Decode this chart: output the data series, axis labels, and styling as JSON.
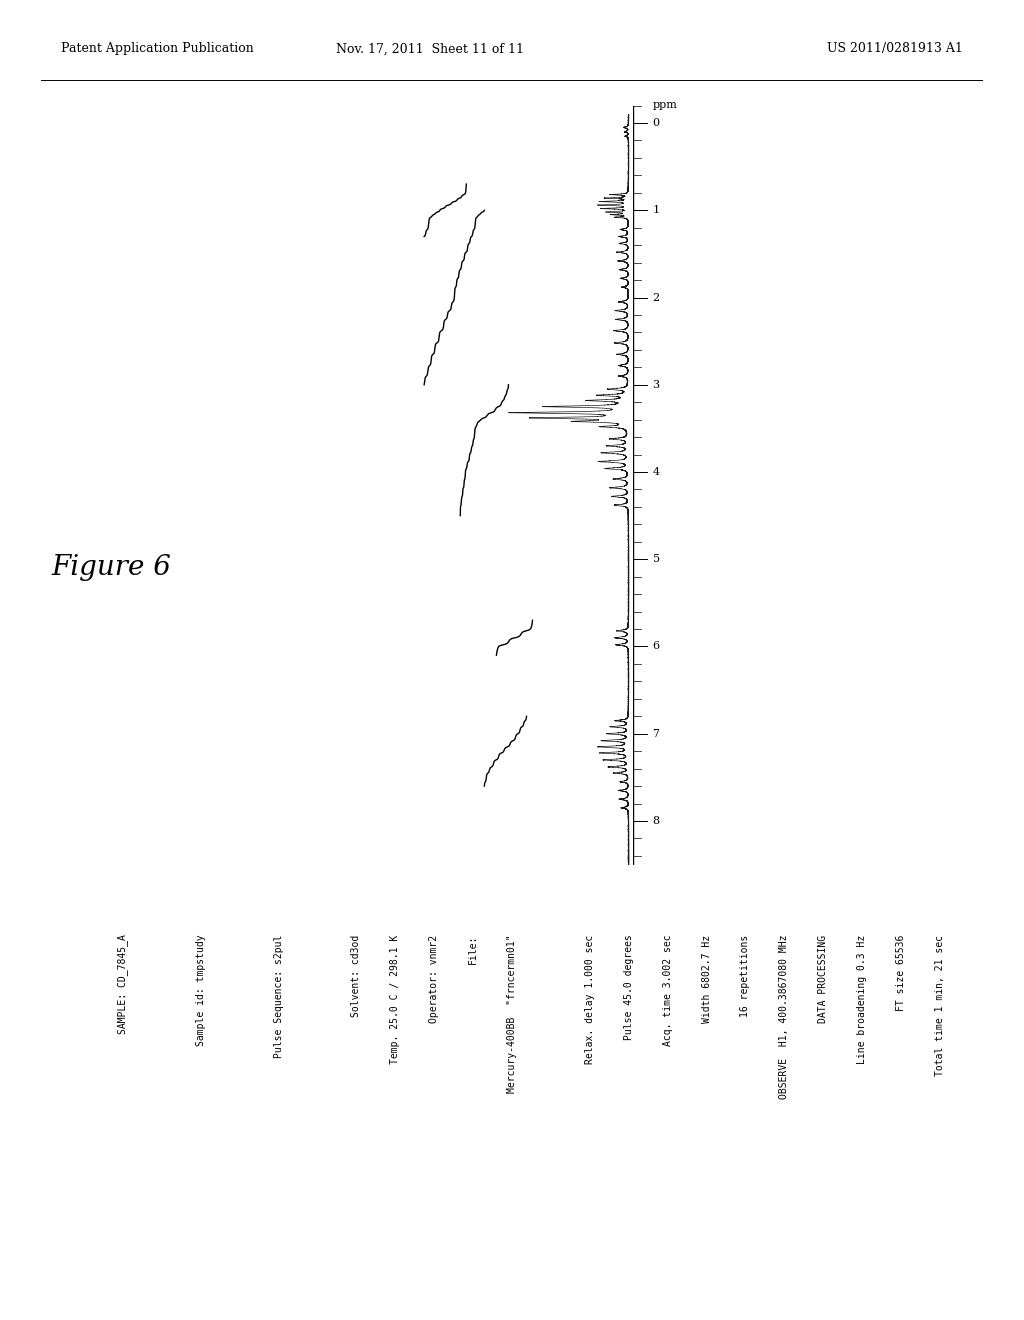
{
  "title": "Figure 6",
  "header_left": "Patent Application Publication",
  "header_center": "Nov. 17, 2011  Sheet 11 of 11",
  "header_right": "US 2011/0281913 A1",
  "ppm_axis_label": "ppm",
  "ppm_ticks": [
    0,
    1,
    2,
    3,
    4,
    5,
    6,
    7,
    8
  ],
  "text_lines": [
    "SAMPLE: CD_7845_A",
    "",
    "Sample id: tmpstudy",
    "",
    "Pulse Sequence: s2pul",
    "",
    "Solvent: cd3od",
    "Temp. 25.0 C / 298.1 K",
    "Operator: vnmr2",
    "File:",
    "Mercury-400BB  \"frncermn01\"",
    "",
    "Relax. delay 1.000 sec",
    "Pulse 45.0 degrees",
    "Acq. time 3.002 sec",
    "Width 6802.7 Hz",
    "16 repetitions",
    "OBSERVE  H1, 400.3867080 MHz",
    "DATA PROCESSING",
    "Line broadening 0.3 Hz",
    "FT size 65536",
    "Total time 1 min, 21 sec"
  ],
  "background_color": "#ffffff",
  "spectrum_color": "#1a1a1a"
}
